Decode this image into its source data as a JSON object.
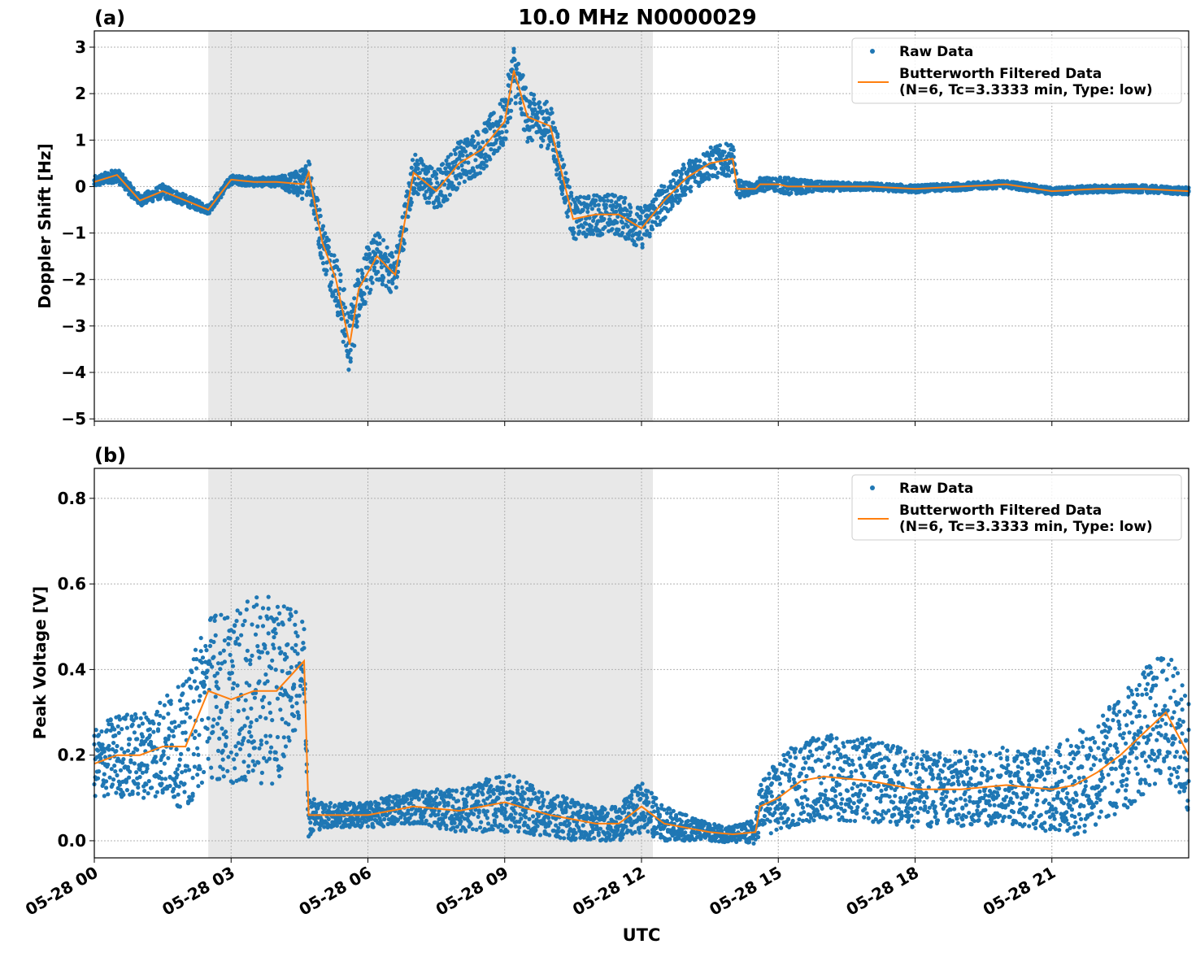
{
  "figure": {
    "title": "10.0 MHz N0000029",
    "xlabel": "UTC",
    "colors": {
      "raw": "#1f77b4",
      "filtered": "#ff7f0e",
      "shade": "#e8e8e8",
      "grid": "#b0b0b0"
    }
  },
  "chart_data": [
    {
      "type": "scatter",
      "panel_label": "(a)",
      "ylabel": "Doppler Shift [Hz]",
      "xlim": [
        "05-28 00:00",
        "05-29 00:00"
      ],
      "ylim": [
        -5.05,
        3.35
      ],
      "yticks": [
        -5,
        -4,
        -3,
        -2,
        -1,
        0,
        1,
        2,
        3
      ],
      "ytick_labels": [
        "−5",
        "−4",
        "−3",
        "−2",
        "−1",
        "0",
        "1",
        "2",
        "3"
      ],
      "grid": true,
      "legend": "upper right",
      "legend_entries": [
        "Raw Data",
        "Butterworth Filtered Data",
        "(N=6, Tc=3.3333 min, Type: low)"
      ],
      "shaded_interval": [
        "05-28 02:30",
        "05-28 12:15"
      ],
      "x_hours": [
        0,
        0.5,
        1,
        1.5,
        2,
        2.5,
        3,
        3.5,
        4,
        4.6,
        4.7,
        5,
        5.3,
        5.6,
        5.8,
        6.2,
        6.6,
        7,
        7.5,
        8,
        8.5,
        9,
        9.2,
        9.5,
        10,
        10.5,
        11,
        11.5,
        12,
        12.5,
        13,
        13.5,
        14,
        14.1,
        14.5,
        14.6,
        15,
        15.2,
        15.5,
        16,
        17,
        18,
        19,
        20,
        21,
        22,
        23,
        24
      ],
      "series": [
        {
          "name": "Raw Data",
          "marker": "dot",
          "spread_y": [
            0.12,
            0.15,
            0.12,
            0.15,
            0.12,
            0.1,
            0.1,
            0.1,
            0.1,
            0.35,
            0.4,
            0.5,
            0.6,
            0.7,
            0.6,
            0.55,
            0.45,
            0.45,
            0.45,
            0.5,
            0.5,
            0.55,
            0.6,
            0.55,
            0.5,
            0.45,
            0.45,
            0.45,
            0.45,
            0.4,
            0.35,
            0.35,
            0.35,
            0.2,
            0.1,
            0.15,
            0.15,
            0.2,
            0.15,
            0.1,
            0.08,
            0.08,
            0.08,
            0.08,
            0.08,
            0.08,
            0.08,
            0.08
          ]
        },
        {
          "name": "Butterworth Filtered Data",
          "values": [
            0.1,
            0.25,
            -0.3,
            -0.1,
            -0.3,
            -0.5,
            0.15,
            0.1,
            0.1,
            0.05,
            0.3,
            -1.2,
            -2.0,
            -3.4,
            -2.2,
            -1.5,
            -1.9,
            0.3,
            -0.1,
            0.5,
            0.8,
            1.4,
            2.5,
            1.5,
            1.3,
            -0.7,
            -0.6,
            -0.6,
            -0.9,
            -0.3,
            0.2,
            0.5,
            0.6,
            -0.05,
            -0.05,
            0.05,
            0.05,
            0.0,
            0.0,
            0.0,
            0.0,
            -0.05,
            0.0,
            0.05,
            -0.1,
            -0.05,
            -0.05,
            -0.1
          ]
        }
      ]
    },
    {
      "type": "scatter",
      "panel_label": "(b)",
      "ylabel": "Peak Voltage [V]",
      "xlim": [
        "05-28 00:00",
        "05-29 00:00"
      ],
      "ylim": [
        -0.04,
        0.87
      ],
      "yticks": [
        0.0,
        0.2,
        0.4,
        0.6,
        0.8
      ],
      "ytick_labels": [
        "0.0",
        "0.2",
        "0.4",
        "0.6",
        "0.8"
      ],
      "grid": true,
      "legend": "upper right",
      "legend_entries": [
        "Raw Data",
        "Butterworth Filtered Data",
        "(N=6, Tc=3.3333 min, Type: low)"
      ],
      "shaded_interval": [
        "05-28 02:30",
        "05-28 12:15"
      ],
      "x_hours": [
        0,
        0.5,
        1,
        1.5,
        2,
        2.5,
        3,
        3.5,
        4,
        4.6,
        4.7,
        5,
        6,
        7,
        8,
        9,
        10,
        10.5,
        11,
        11.5,
        12,
        12.5,
        13,
        13.5,
        14,
        14.5,
        14.6,
        15,
        15.5,
        16,
        17,
        18,
        19,
        20,
        21,
        21.5,
        22,
        22.5,
        23,
        23.5,
        24
      ],
      "series": [
        {
          "name": "Raw Data",
          "marker": "dot",
          "spread_y": [
            0.08,
            0.1,
            0.1,
            0.12,
            0.15,
            0.2,
            0.2,
            0.22,
            0.22,
            0.1,
            0.05,
            0.03,
            0.03,
            0.04,
            0.05,
            0.07,
            0.05,
            0.05,
            0.04,
            0.04,
            0.06,
            0.04,
            0.03,
            0.02,
            0.02,
            0.03,
            0.06,
            0.09,
            0.1,
            0.1,
            0.1,
            0.09,
            0.09,
            0.09,
            0.1,
            0.12,
            0.13,
            0.14,
            0.15,
            0.15,
            0.15
          ]
        },
        {
          "name": "Butterworth Filtered Data",
          "values": [
            0.18,
            0.2,
            0.2,
            0.22,
            0.22,
            0.35,
            0.33,
            0.35,
            0.35,
            0.42,
            0.06,
            0.06,
            0.06,
            0.08,
            0.07,
            0.09,
            0.06,
            0.05,
            0.04,
            0.04,
            0.08,
            0.04,
            0.03,
            0.02,
            0.015,
            0.02,
            0.08,
            0.1,
            0.14,
            0.15,
            0.14,
            0.12,
            0.12,
            0.13,
            0.12,
            0.13,
            0.16,
            0.2,
            0.25,
            0.3,
            0.2
          ]
        }
      ]
    }
  ],
  "xaxis": {
    "tick_hours": [
      0,
      3,
      6,
      9,
      12,
      15,
      18,
      21
    ],
    "tick_labels": [
      "05-28 00",
      "05-28 03",
      "05-28 06",
      "05-28 09",
      "05-28 12",
      "05-28 15",
      "05-28 18",
      "05-28 21"
    ]
  }
}
